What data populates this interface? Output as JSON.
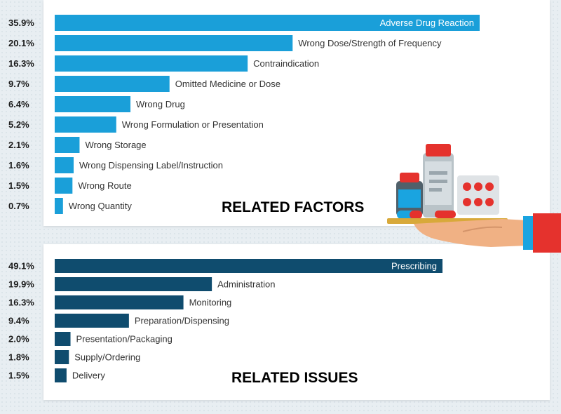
{
  "colors": {
    "factors_bar": "#1a9fd9",
    "issues_bar": "#0f4c6e",
    "background": "#e8eef2",
    "panel": "#ffffff"
  },
  "illustration": {
    "icon": "hand-holding-medicine-tray-icon",
    "cuff_color": "#e5322d",
    "sleeve_color": "#1aa4e0"
  },
  "chart_data": [
    {
      "type": "bar",
      "orientation": "horizontal",
      "title": "RELATED FACTORS",
      "categories": [
        "Adverse Drug Reaction",
        "Wrong Dose/Strength of Frequency",
        "Contraindication",
        "Omitted Medicine or Dose",
        "Wrong Drug",
        "Wrong Formulation or Presentation",
        "Wrong Storage",
        "Wrong Dispensing Label/Instruction",
        "Wrong Route",
        "Wrong Quantity"
      ],
      "values": [
        35.9,
        20.1,
        16.3,
        9.7,
        6.4,
        5.2,
        2.1,
        1.6,
        1.5,
        0.7
      ],
      "value_labels": [
        "35.9%",
        "20.1%",
        "16.3%",
        "9.7%",
        "6.4%",
        "5.2%",
        "2.1%",
        "1.6%",
        "1.5%",
        "0.7%"
      ],
      "unit": "%"
    },
    {
      "type": "bar",
      "orientation": "horizontal",
      "title": "RELATED ISSUES",
      "categories": [
        "Prescribing",
        "Administration",
        "Monitoring",
        "Preparation/Dispensing",
        "Presentation/Packaging",
        "Supply/Ordering",
        "Delivery"
      ],
      "values": [
        49.1,
        19.9,
        16.3,
        9.4,
        2.0,
        1.8,
        1.5
      ],
      "value_labels": [
        "49.1%",
        "19.9%",
        "16.3%",
        "9.4%",
        "2.0%",
        "1.8%",
        "1.5%"
      ],
      "unit": "%"
    }
  ]
}
